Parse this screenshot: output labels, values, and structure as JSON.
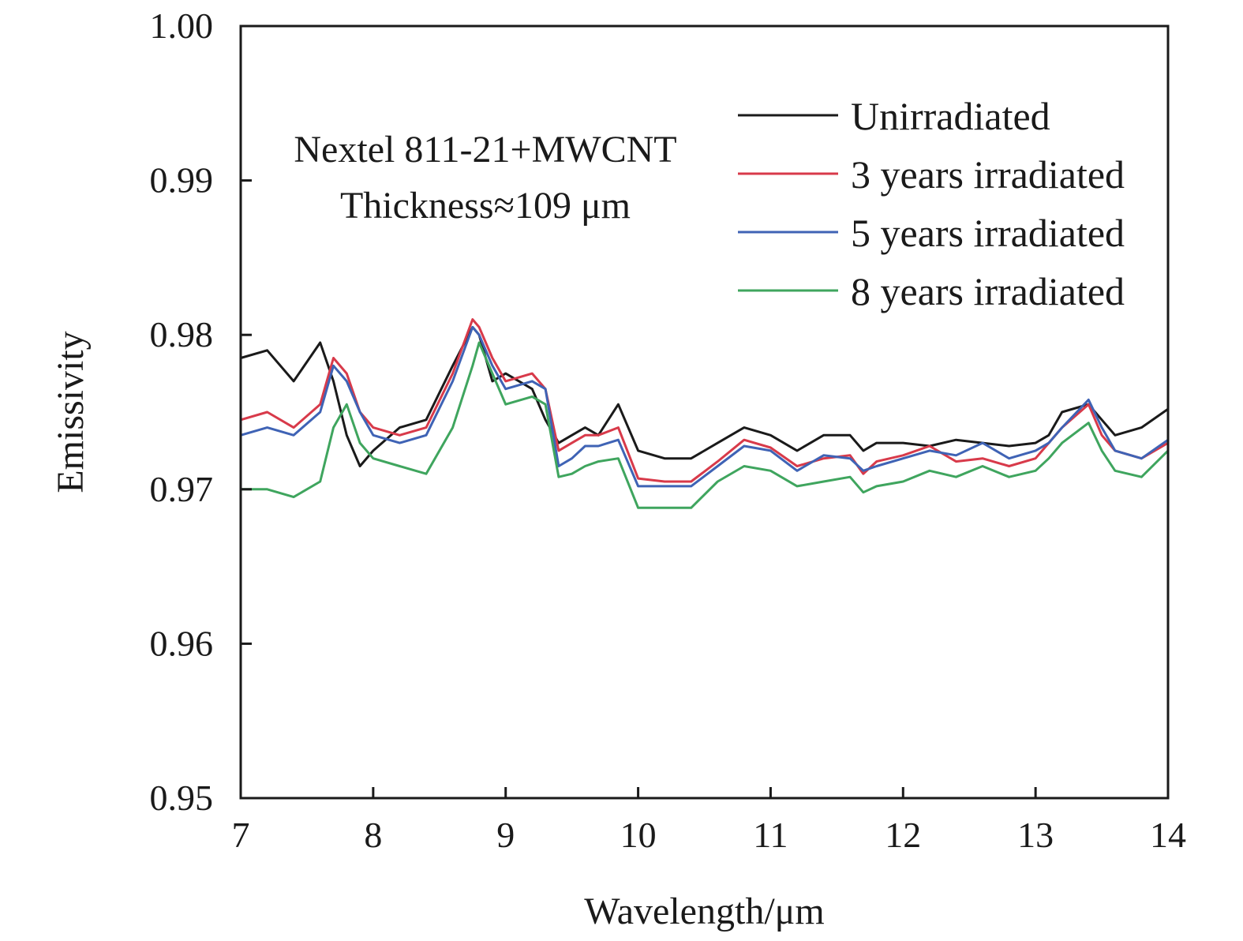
{
  "chart_data": {
    "type": "line",
    "title": "",
    "xlabel": "Wavelength/μm",
    "ylabel": "Emissivity",
    "xlim": [
      7,
      14
    ],
    "ylim": [
      0.95,
      1.0
    ],
    "xticks": [
      7,
      8,
      9,
      10,
      11,
      12,
      13,
      14
    ],
    "yticks": [
      0.95,
      0.96,
      0.97,
      0.98,
      0.99,
      1.0
    ],
    "xtick_labels": [
      "7",
      "8",
      "9",
      "10",
      "11",
      "12",
      "13",
      "14"
    ],
    "ytick_labels": [
      "0.95",
      "0.96",
      "0.97",
      "0.98",
      "0.99",
      "1.00"
    ],
    "grid": false,
    "legend_position": "top-right",
    "annotations": [
      "Nextel 811-21+MWCNT",
      "Thickness≈109 μm"
    ],
    "x": [
      7.0,
      7.2,
      7.4,
      7.6,
      7.7,
      7.8,
      7.9,
      8.0,
      8.2,
      8.4,
      8.6,
      8.75,
      8.8,
      8.9,
      9.0,
      9.2,
      9.3,
      9.4,
      9.5,
      9.6,
      9.7,
      9.85,
      10.0,
      10.2,
      10.4,
      10.6,
      10.8,
      11.0,
      11.2,
      11.4,
      11.6,
      11.7,
      11.8,
      12.0,
      12.2,
      12.4,
      12.6,
      12.8,
      13.0,
      13.1,
      13.2,
      13.4,
      13.5,
      13.6,
      13.8,
      14.0
    ],
    "series": [
      {
        "name": "Unirradiated",
        "color": "#1a1a1a",
        "values": [
          0.9785,
          0.979,
          0.977,
          0.9795,
          0.977,
          0.9735,
          0.9715,
          0.9725,
          0.974,
          0.9745,
          0.978,
          0.9805,
          0.98,
          0.977,
          0.9775,
          0.9765,
          0.9745,
          0.973,
          0.9735,
          0.974,
          0.9735,
          0.9755,
          0.9725,
          0.972,
          0.972,
          0.973,
          0.974,
          0.9735,
          0.9725,
          0.9735,
          0.9735,
          0.9725,
          0.973,
          0.973,
          0.9728,
          0.9732,
          0.973,
          0.9728,
          0.973,
          0.9735,
          0.975,
          0.9755,
          0.9745,
          0.9735,
          0.974,
          0.9752
        ]
      },
      {
        "name": "3 years irradiated",
        "color": "#d83a4a",
        "values": [
          0.9745,
          0.975,
          0.974,
          0.9755,
          0.9785,
          0.9775,
          0.975,
          0.974,
          0.9735,
          0.974,
          0.9775,
          0.981,
          0.9805,
          0.9785,
          0.977,
          0.9775,
          0.9765,
          0.9725,
          0.973,
          0.9735,
          0.9735,
          0.974,
          0.9707,
          0.9705,
          0.9705,
          0.9718,
          0.9732,
          0.9727,
          0.9715,
          0.972,
          0.9722,
          0.971,
          0.9718,
          0.9722,
          0.9728,
          0.9718,
          0.972,
          0.9715,
          0.972,
          0.973,
          0.974,
          0.9755,
          0.9735,
          0.9725,
          0.972,
          0.973
        ]
      },
      {
        "name": "5 years irradiated",
        "color": "#3f63b5",
        "values": [
          0.9735,
          0.974,
          0.9735,
          0.975,
          0.978,
          0.977,
          0.975,
          0.9735,
          0.973,
          0.9735,
          0.977,
          0.9805,
          0.98,
          0.978,
          0.9765,
          0.977,
          0.9765,
          0.9715,
          0.972,
          0.9728,
          0.9728,
          0.9732,
          0.9702,
          0.9702,
          0.9702,
          0.9715,
          0.9728,
          0.9725,
          0.9712,
          0.9722,
          0.972,
          0.9712,
          0.9715,
          0.972,
          0.9725,
          0.9722,
          0.973,
          0.972,
          0.9725,
          0.973,
          0.974,
          0.9758,
          0.974,
          0.9725,
          0.972,
          0.9732
        ]
      },
      {
        "name": "8 years irradiated",
        "color": "#3fa55e",
        "values": [
          0.97,
          0.97,
          0.9695,
          0.9705,
          0.974,
          0.9755,
          0.973,
          0.972,
          0.9715,
          0.971,
          0.974,
          0.978,
          0.9795,
          0.9775,
          0.9755,
          0.976,
          0.9755,
          0.9708,
          0.971,
          0.9715,
          0.9718,
          0.972,
          0.9688,
          0.9688,
          0.9688,
          0.9705,
          0.9715,
          0.9712,
          0.9702,
          0.9705,
          0.9708,
          0.9698,
          0.9702,
          0.9705,
          0.9712,
          0.9708,
          0.9715,
          0.9708,
          0.9712,
          0.972,
          0.973,
          0.9743,
          0.9725,
          0.9712,
          0.9708,
          0.9725
        ]
      }
    ]
  }
}
